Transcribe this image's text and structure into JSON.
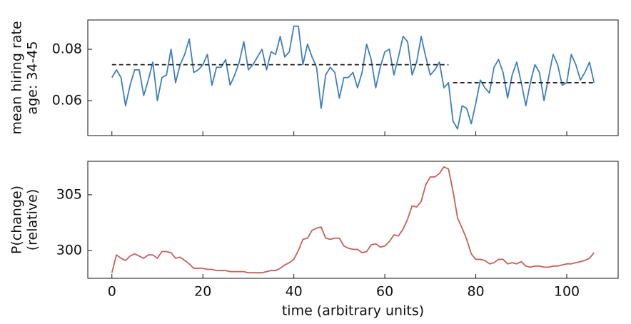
{
  "chart_data": [
    {
      "type": "line",
      "ylabel": [
        "mean hiring rate",
        "age: 34-45"
      ],
      "x": [
        0,
        1,
        2,
        3,
        4,
        5,
        6,
        7,
        8,
        9,
        10,
        11,
        12,
        13,
        14,
        15,
        16,
        17,
        18,
        19,
        20,
        21,
        22,
        23,
        24,
        25,
        26,
        27,
        28,
        29,
        30,
        31,
        32,
        33,
        34,
        35,
        36,
        37,
        38,
        39,
        40,
        41,
        42,
        43,
        44,
        45,
        46,
        47,
        48,
        49,
        50,
        51,
        52,
        53,
        54,
        55,
        56,
        57,
        58,
        59,
        60,
        61,
        62,
        63,
        64,
        65,
        66,
        67,
        68,
        69,
        70,
        71,
        72,
        73,
        74,
        75,
        76,
        77,
        78,
        79,
        80,
        81,
        82,
        83,
        84,
        85,
        86,
        87,
        88,
        89,
        90,
        91,
        92,
        93,
        94,
        95,
        96,
        97,
        98,
        99,
        100,
        101,
        102,
        103,
        104,
        105,
        106
      ],
      "values": [
        0.069,
        0.072,
        0.069,
        0.058,
        0.066,
        0.072,
        0.072,
        0.062,
        0.068,
        0.075,
        0.06,
        0.069,
        0.07,
        0.08,
        0.067,
        0.074,
        0.078,
        0.084,
        0.071,
        0.072,
        0.074,
        0.078,
        0.066,
        0.073,
        0.073,
        0.076,
        0.066,
        0.07,
        0.075,
        0.083,
        0.072,
        0.074,
        0.077,
        0.08,
        0.072,
        0.079,
        0.078,
        0.085,
        0.077,
        0.079,
        0.089,
        0.089,
        0.074,
        0.082,
        0.077,
        0.073,
        0.057,
        0.07,
        0.073,
        0.071,
        0.061,
        0.069,
        0.069,
        0.071,
        0.065,
        0.071,
        0.082,
        0.076,
        0.065,
        0.073,
        0.079,
        0.08,
        0.07,
        0.077,
        0.085,
        0.083,
        0.07,
        0.075,
        0.085,
        0.077,
        0.07,
        0.072,
        0.075,
        0.065,
        0.067,
        0.052,
        0.049,
        0.058,
        0.057,
        0.051,
        0.059,
        0.068,
        0.065,
        0.063,
        0.073,
        0.076,
        0.071,
        0.061,
        0.07,
        0.075,
        0.067,
        0.058,
        0.067,
        0.074,
        0.071,
        0.06,
        0.069,
        0.078,
        0.074,
        0.066,
        0.067,
        0.078,
        0.074,
        0.068,
        0.071,
        0.075,
        0.067
      ],
      "color": "#3f7fbf",
      "mean_lines": [
        {
          "x0": 0,
          "x1": 74,
          "value": 0.074
        },
        {
          "x0": 75,
          "x1": 106,
          "value": 0.067
        }
      ],
      "mean_line_color": "#222222",
      "xlim": [
        -5.3,
        111.3
      ],
      "xticks": [
        0,
        20,
        40,
        60,
        80,
        100
      ],
      "xtick_labels": false,
      "ylim": [
        0.0464,
        0.0914
      ],
      "yticks": [
        0.06,
        0.08
      ]
    },
    {
      "type": "line",
      "ylabel": [
        "P(change)",
        "(relative)"
      ],
      "xlabel": "time (arbitrary units)",
      "x": [
        0,
        1,
        2,
        3,
        4,
        5,
        6,
        7,
        8,
        9,
        10,
        11,
        12,
        13,
        14,
        15,
        16,
        17,
        18,
        19,
        20,
        21,
        22,
        23,
        24,
        25,
        26,
        27,
        28,
        29,
        30,
        31,
        32,
        33,
        34,
        35,
        36,
        37,
        38,
        39,
        40,
        41,
        42,
        43,
        44,
        45,
        46,
        47,
        48,
        49,
        50,
        51,
        52,
        53,
        54,
        55,
        56,
        57,
        58,
        59,
        60,
        61,
        62,
        63,
        64,
        65,
        66,
        67,
        68,
        69,
        70,
        71,
        72,
        73,
        74,
        75,
        76,
        77,
        78,
        79,
        80,
        81,
        82,
        83,
        84,
        85,
        86,
        87,
        88,
        89,
        90,
        91,
        92,
        93,
        94,
        95,
        96,
        97,
        98,
        99,
        100,
        101,
        102,
        103,
        104,
        105,
        106
      ],
      "values": [
        298.0,
        299.6,
        299.3,
        299.1,
        299.5,
        299.7,
        299.5,
        299.3,
        299.6,
        299.6,
        299.3,
        299.9,
        299.9,
        299.8,
        299.3,
        299.4,
        299.1,
        298.8,
        298.4,
        298.4,
        298.4,
        298.3,
        298.3,
        298.2,
        298.2,
        298.2,
        298.1,
        298.1,
        298.1,
        298.1,
        298.0,
        298.0,
        298.0,
        298.0,
        298.1,
        298.2,
        298.2,
        298.4,
        298.7,
        298.9,
        299.2,
        300.0,
        301.0,
        301.1,
        301.8,
        302.0,
        302.1,
        301.1,
        301.0,
        301.1,
        301.1,
        300.4,
        300.2,
        300.1,
        300.1,
        299.8,
        299.9,
        300.5,
        300.6,
        300.3,
        300.4,
        300.8,
        301.4,
        301.3,
        301.9,
        302.8,
        304.0,
        303.9,
        304.4,
        305.9,
        306.6,
        306.6,
        306.9,
        307.5,
        307.3,
        305.3,
        302.9,
        302.0,
        301.0,
        299.7,
        299.2,
        299.2,
        299.1,
        298.8,
        298.9,
        299.2,
        299.2,
        298.8,
        298.9,
        298.8,
        299.0,
        298.6,
        298.5,
        298.6,
        298.6,
        298.5,
        298.5,
        298.6,
        298.6,
        298.7,
        298.8,
        298.8,
        298.9,
        299.0,
        299.1,
        299.3,
        299.8
      ],
      "color": "#c8605a",
      "xlim": [
        -5.3,
        111.3
      ],
      "xticks": [
        0,
        20,
        40,
        60,
        80,
        100
      ],
      "xtick_labels": true,
      "ylim": [
        297.5,
        308.0
      ],
      "yticks": [
        300,
        305
      ]
    }
  ]
}
